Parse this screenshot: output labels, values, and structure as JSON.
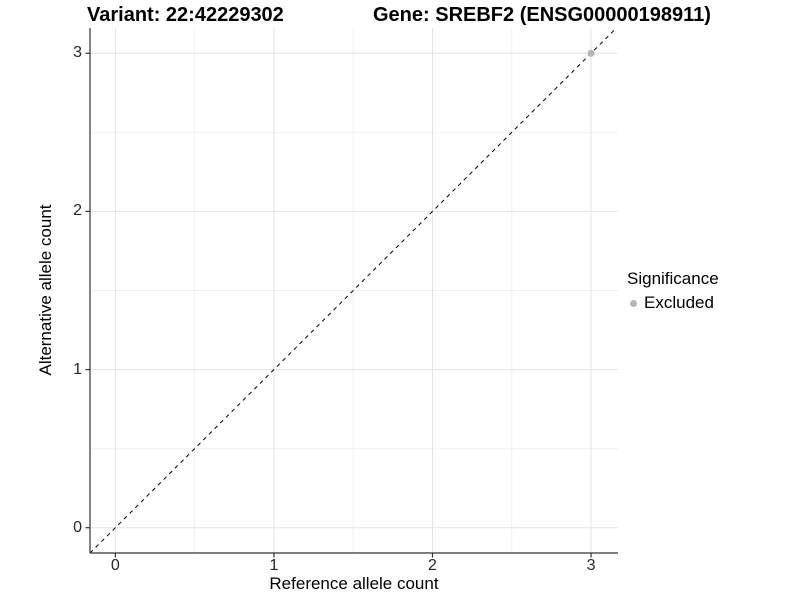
{
  "chart_data": {
    "type": "scatter",
    "title_left": "Variant: 22:42229302",
    "title_right": "Gene: SREBF2 (ENSG00000198911)",
    "xlabel": "Reference allele count",
    "ylabel": "Alternative allele count",
    "xlim": [
      -0.16,
      3.17
    ],
    "ylim": [
      -0.16,
      3.16
    ],
    "x_ticks": [
      0,
      1,
      2,
      3
    ],
    "y_ticks": [
      0,
      1,
      2,
      3
    ],
    "x_minor_ticks": [
      0.5,
      1.5,
      2.5
    ],
    "y_minor_ticks": [
      0.5,
      1.5,
      2.5
    ],
    "grid": true,
    "identity_line": {
      "style": "dashed",
      "from": [
        -0.16,
        -0.16
      ],
      "to": [
        3.16,
        3.16
      ],
      "color": "#000000"
    },
    "points": [
      {
        "x": 3,
        "y": 3,
        "significance": "Excluded"
      }
    ],
    "legend": {
      "title": "Significance",
      "position": "right",
      "items": [
        {
          "label": "Excluded",
          "color": "#b5b5b5"
        }
      ]
    },
    "colors": {
      "grid_major": "#e3e3e3",
      "grid_minor": "#f0f0f0",
      "axis_line": "#333333",
      "tick_label": "#262626",
      "point": "#b5b5b5",
      "background": "#ffffff"
    }
  }
}
